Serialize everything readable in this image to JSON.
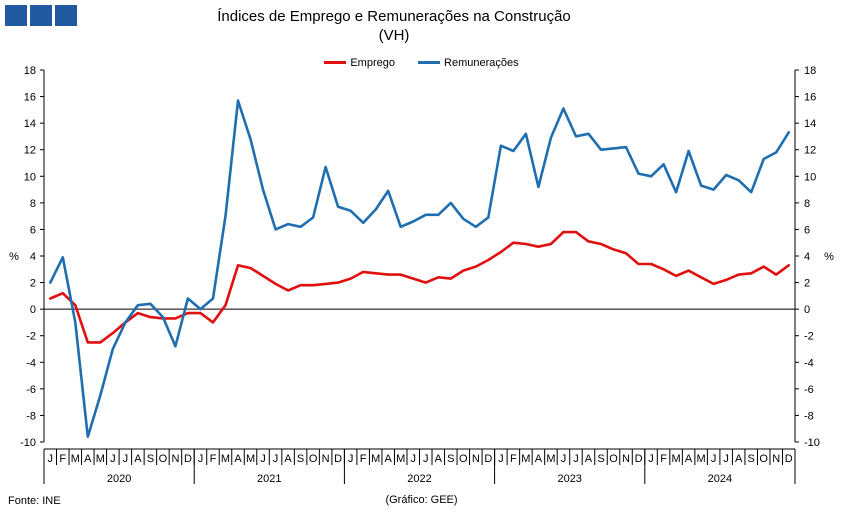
{
  "header": {
    "logo": "logo-squares"
  },
  "chart_data": {
    "type": "line",
    "title": "Índices de Emprego e Remunerações na Construção",
    "subtitle": "(VH)",
    "ylabel_left": "%",
    "ylabel_right": "%",
    "ylim": [
      -10,
      18
    ],
    "yticks": [
      -10,
      -8,
      -6,
      -4,
      -2,
      0,
      2,
      4,
      6,
      8,
      10,
      12,
      14,
      16,
      18
    ],
    "month_labels": [
      "J",
      "F",
      "M",
      "A",
      "M",
      "J",
      "J",
      "A",
      "S",
      "O",
      "N",
      "D"
    ],
    "years": [
      "2020",
      "2021",
      "2022",
      "2023",
      "2024"
    ],
    "legend": {
      "position": "top-center"
    },
    "series": [
      {
        "name": "Emprego",
        "color": "#e01010",
        "values": [
          0.8,
          1.2,
          0.3,
          -2.5,
          -2.5,
          -1.8,
          -1.0,
          -0.3,
          -0.6,
          -0.7,
          -0.7,
          -0.3,
          -0.3,
          -1.0,
          0.3,
          3.3,
          3.1,
          2.5,
          1.9,
          1.4,
          1.8,
          1.8,
          1.9,
          2.0,
          2.3,
          2.8,
          2.7,
          2.6,
          2.6,
          2.3,
          2.0,
          2.4,
          2.3,
          2.9,
          3.2,
          3.7,
          4.3,
          5.0,
          4.9,
          4.7,
          4.9,
          5.8,
          5.8,
          5.1,
          4.9,
          4.5,
          4.2,
          3.4,
          3.4,
          3.0,
          2.5,
          2.9,
          2.4,
          1.9,
          2.2,
          2.6,
          2.7,
          3.2,
          2.6,
          3.3
        ]
      },
      {
        "name": "Remunerações",
        "color": "#1f6fb0",
        "values": [
          2.0,
          3.9,
          -1.0,
          -9.6,
          -6.5,
          -3.0,
          -1.0,
          0.3,
          0.4,
          -0.6,
          -2.8,
          0.8,
          0.0,
          0.8,
          7.0,
          15.7,
          12.8,
          9.0,
          6.0,
          6.4,
          6.2,
          6.9,
          10.7,
          7.7,
          7.4,
          6.5,
          7.5,
          8.9,
          6.2,
          6.6,
          7.1,
          7.1,
          8.0,
          6.8,
          6.2,
          6.9,
          12.3,
          11.9,
          13.2,
          9.2,
          12.9,
          15.1,
          13.0,
          13.2,
          12.0,
          12.1,
          12.2,
          10.2,
          10.0,
          10.9,
          8.8,
          11.9,
          9.3,
          9.0,
          10.1,
          9.7,
          8.8,
          11.3,
          11.8,
          13.3
        ]
      }
    ]
  },
  "footer": {
    "source": "Fonte: INE",
    "credit": "(Gráfico: GEE)"
  }
}
